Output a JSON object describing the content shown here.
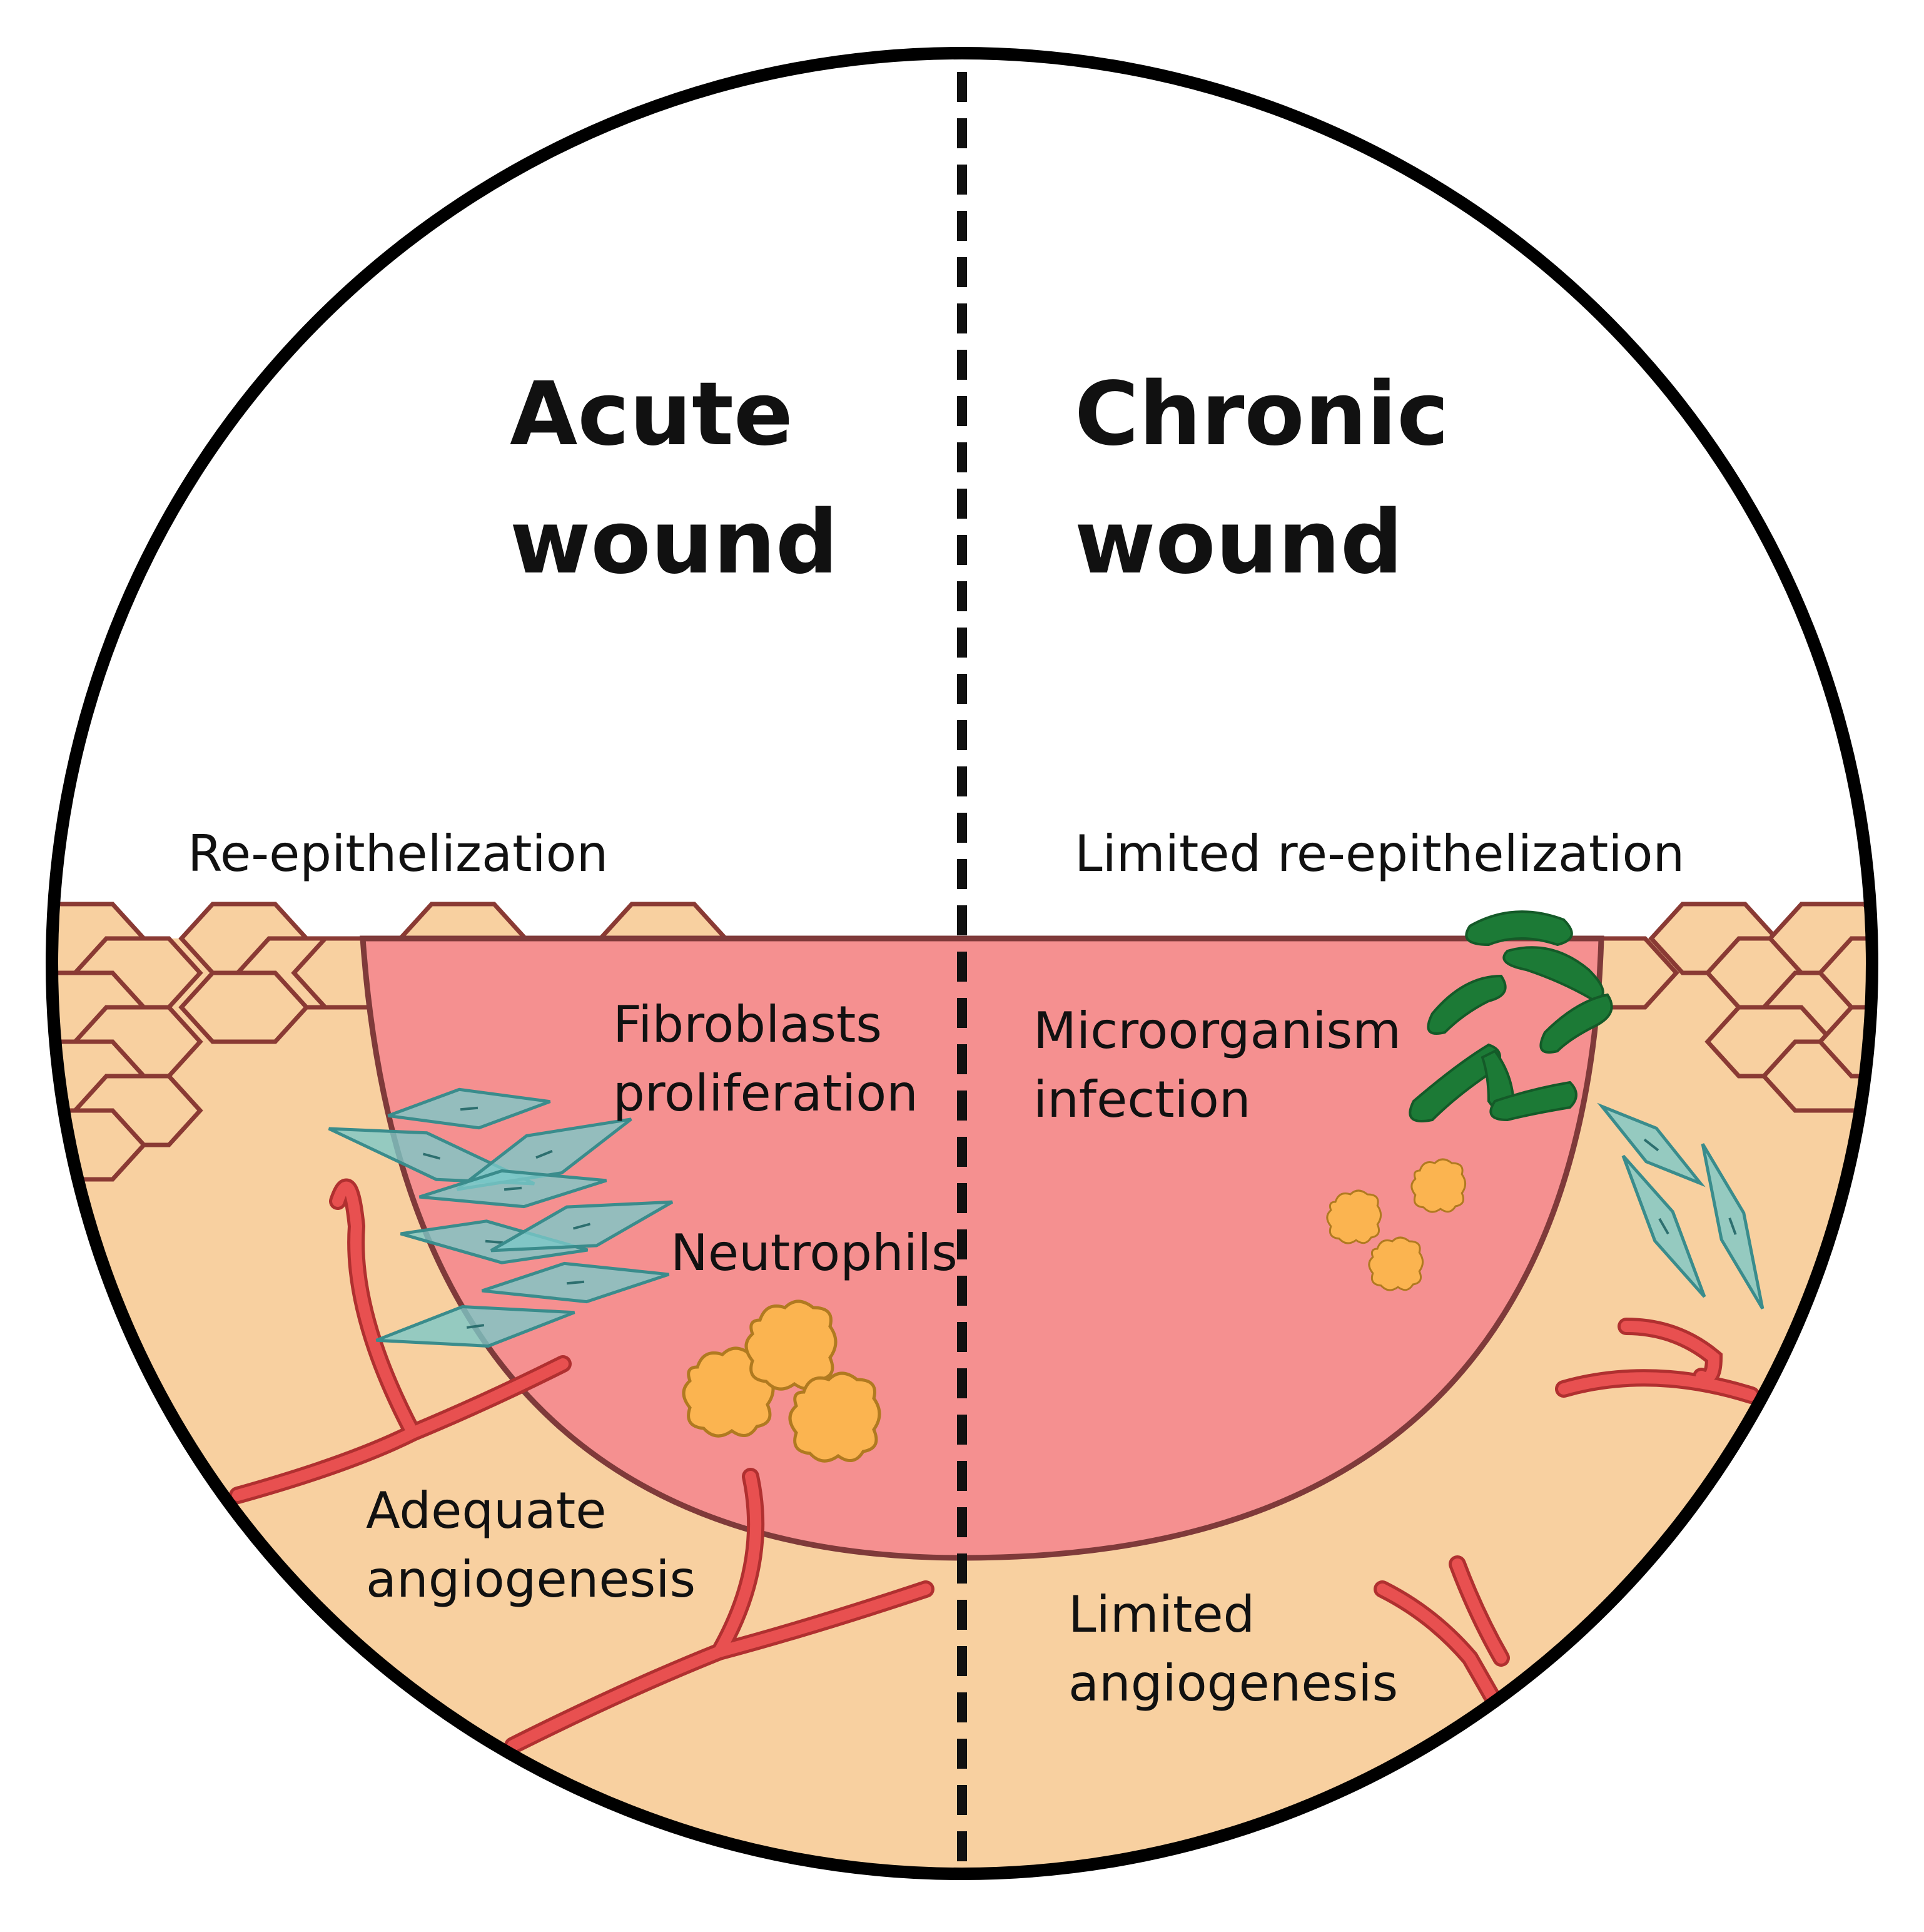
{
  "titles": {
    "acute_line1": "Acute",
    "acute_line2": "wound",
    "chronic_line1": "Chronic",
    "chronic_line2": "wound"
  },
  "labels": {
    "re_epithelization": "Re-epithelization",
    "limited_re_epithelization": "Limited re-epithelization",
    "fibroblasts_line1": "Fibroblasts",
    "fibroblasts_line2": "proliferation",
    "neutrophils": "Neutrophils",
    "adequate_line1": "Adequate",
    "adequate_line2": "angiogenesis",
    "microorganism_line1": "Microorganism",
    "microorganism_line2": "infection",
    "limited_angio_line1": "Limited",
    "limited_angio_line2": "angiogenesis"
  },
  "colors": {
    "skin": "#f8d0a0",
    "skin_outline": "#8a3a34",
    "wound_bed": "#f59090",
    "wound_outline": "#7f3a3a",
    "fibroblast": "#7cc8c8",
    "fibroblast_outline": "#3a8c8c",
    "neutrophil": "#fbb450",
    "neutrophil_outline": "#b07a20",
    "vessel": "#e85050",
    "microorganism": "#1c7a36",
    "circle_outline": "#000000"
  },
  "icons": [
    "epithelial-cell-icon",
    "fibroblast-icon",
    "neutrophil-icon",
    "blood-vessel-icon",
    "microorganism-icon"
  ]
}
